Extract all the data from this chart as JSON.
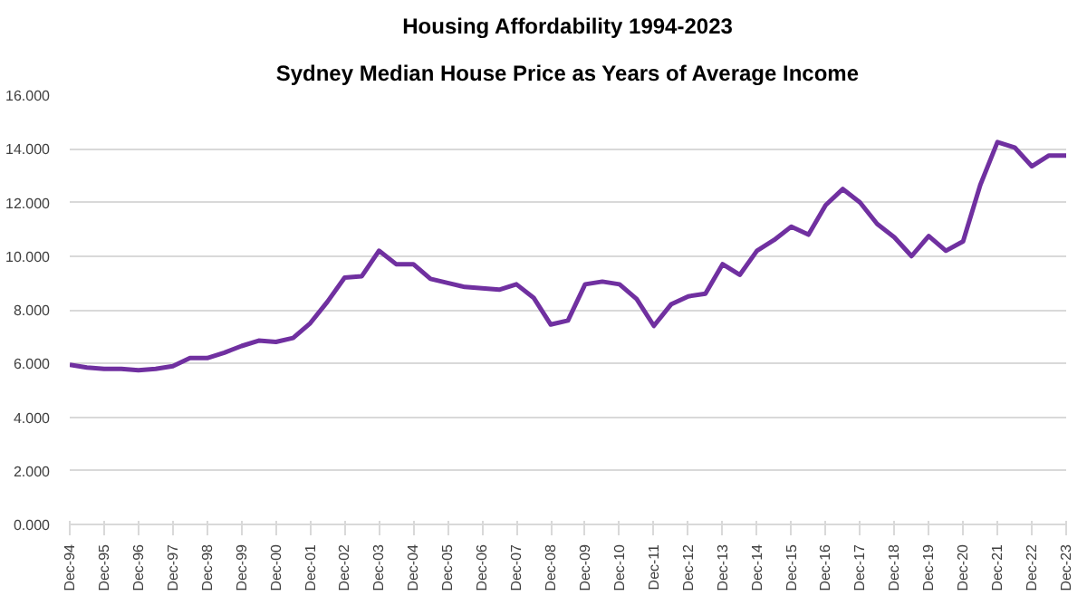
{
  "chart_data": {
    "type": "line",
    "title": "Housing Affordability 1994-2023",
    "subtitle": "Sydney Median House Price as Years of Average Income",
    "categories": [
      "Dec-94",
      null,
      "Dec-95",
      null,
      "Dec-96",
      null,
      "Dec-97",
      null,
      "Dec-98",
      null,
      "Dec-99",
      null,
      "Dec-00",
      null,
      "Dec-01",
      null,
      "Dec-02",
      null,
      "Dec-03",
      null,
      "Dec-04",
      null,
      "Dec-05",
      null,
      "Dec-06",
      null,
      "Dec-07",
      null,
      "Dec-08",
      null,
      "Dec-09",
      null,
      "Dec-10",
      null,
      "Dec-11",
      null,
      "Dec-12",
      null,
      "Dec-13",
      null,
      "Dec-14",
      null,
      "Dec-15",
      null,
      "Dec-16",
      null,
      "Dec-17",
      null,
      "Dec-18",
      null,
      "Dec-19",
      null,
      "Dec-20",
      null,
      "Dec-21",
      null,
      "Dec-22",
      null,
      "Dec-23"
    ],
    "series": [
      {
        "color": "#7030a0",
        "values": [
          5.95,
          5.85,
          5.8,
          5.8,
          5.75,
          5.8,
          5.9,
          6.2,
          6.2,
          6.4,
          6.65,
          6.85,
          6.8,
          6.95,
          7.5,
          8.3,
          9.2,
          9.25,
          10.2,
          9.7,
          9.7,
          9.15,
          9.0,
          8.85,
          8.8,
          8.75,
          8.95,
          8.45,
          7.45,
          7.6,
          8.95,
          9.05,
          8.95,
          8.4,
          7.4,
          8.2,
          8.5,
          8.6,
          9.7,
          9.3,
          10.2,
          10.6,
          11.1,
          10.8,
          11.9,
          12.5,
          12.0,
          11.2,
          10.7,
          10.0,
          10.75,
          10.2,
          10.55,
          12.65,
          14.25,
          14.05,
          13.35,
          13.75,
          13.75
        ]
      }
    ],
    "ylim": [
      0,
      16
    ],
    "yticks": [
      {
        "value": 0,
        "label": "0.000"
      },
      {
        "value": 2,
        "label": "2.000"
      },
      {
        "value": 4,
        "label": "4.000"
      },
      {
        "value": 6,
        "label": "6.000"
      },
      {
        "value": 8,
        "label": "8.000"
      },
      {
        "value": 10,
        "label": "10.000"
      },
      {
        "value": 12,
        "label": "12.000"
      },
      {
        "value": 14,
        "label": "14.000"
      },
      {
        "value": 16,
        "label": "16.000"
      }
    ],
    "grid": "y",
    "line_style": "solid"
  }
}
